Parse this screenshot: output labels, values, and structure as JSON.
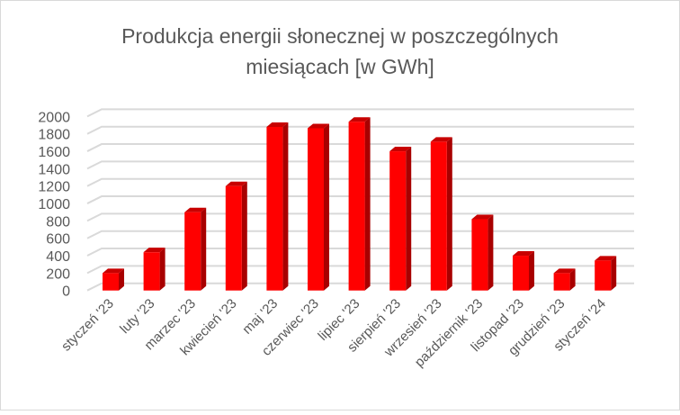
{
  "chart_data": {
    "type": "bar",
    "style": "3d-column",
    "title_lines": [
      "Produkcja energii słonecznej  w poszczególnych",
      "miesiącach [w GWh]"
    ],
    "categories": [
      "styczeń '23",
      "luty '23",
      "marzec '23",
      "kwiecień '23",
      "maj '23",
      "czerwiec '23",
      "lipiec '23",
      "sierpień '23",
      "wrzesień '23",
      "październik '23",
      "listopad '23",
      "grudzień '23",
      "styczeń '24"
    ],
    "values": [
      200,
      440,
      900,
      1200,
      1880,
      1865,
      1940,
      1600,
      1710,
      820,
      400,
      200,
      345
    ],
    "ylim": [
      0,
      2000
    ],
    "yticks": [
      0,
      200,
      400,
      600,
      800,
      1000,
      1200,
      1400,
      1600,
      1800,
      2000
    ],
    "grid": true,
    "legend": "none",
    "colors": {
      "bar": "#ff0000",
      "bar_side": "#a80000",
      "bar_top": "#c80000",
      "grid": "#d9d9d9",
      "text": "#595959",
      "border": "#d9d9d9"
    }
  }
}
